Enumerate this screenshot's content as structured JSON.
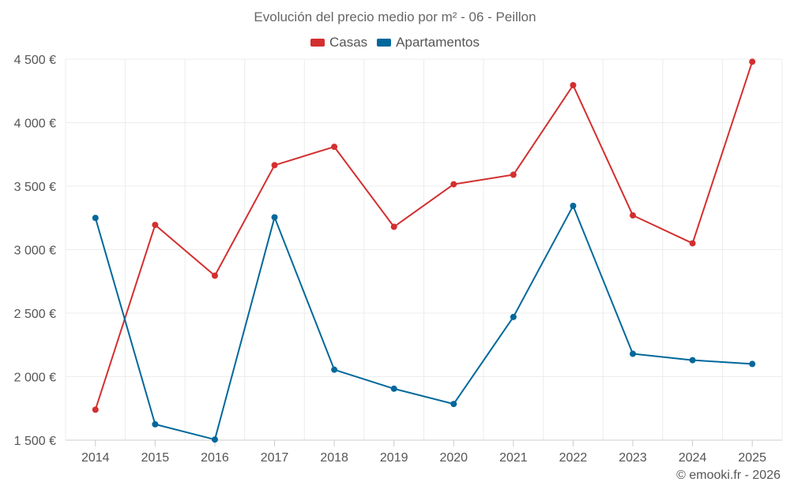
{
  "chart_data": {
    "type": "line",
    "title": "Evolución del precio medio por m² - 06 - Peillon",
    "categories": [
      "2014",
      "2015",
      "2016",
      "2017",
      "2018",
      "2019",
      "2020",
      "2021",
      "2022",
      "2023",
      "2024",
      "2025"
    ],
    "series": [
      {
        "name": "Casas",
        "color": "#d32f2f",
        "values": [
          1740,
          3195,
          2795,
          3665,
          3810,
          3180,
          3515,
          3590,
          4295,
          3270,
          3050,
          4480
        ]
      },
      {
        "name": "Apartamentos",
        "color": "#01689b",
        "values": [
          3250,
          1625,
          1505,
          3255,
          2055,
          1905,
          1785,
          2470,
          3345,
          2180,
          2130,
          2100
        ]
      }
    ],
    "yticks": [
      1500,
      2000,
      2500,
      3000,
      3500,
      4000,
      4500
    ],
    "ytick_labels": [
      "1 500 €",
      "2 000 €",
      "2 500 €",
      "3 000 €",
      "3 500 €",
      "4 000 €",
      "4 500 €"
    ],
    "ylim": [
      1500,
      4500
    ],
    "xlabel": "",
    "ylabel": "",
    "legend_position": "top-center",
    "grid": true
  },
  "credit": "© emooki.fr - 2026"
}
